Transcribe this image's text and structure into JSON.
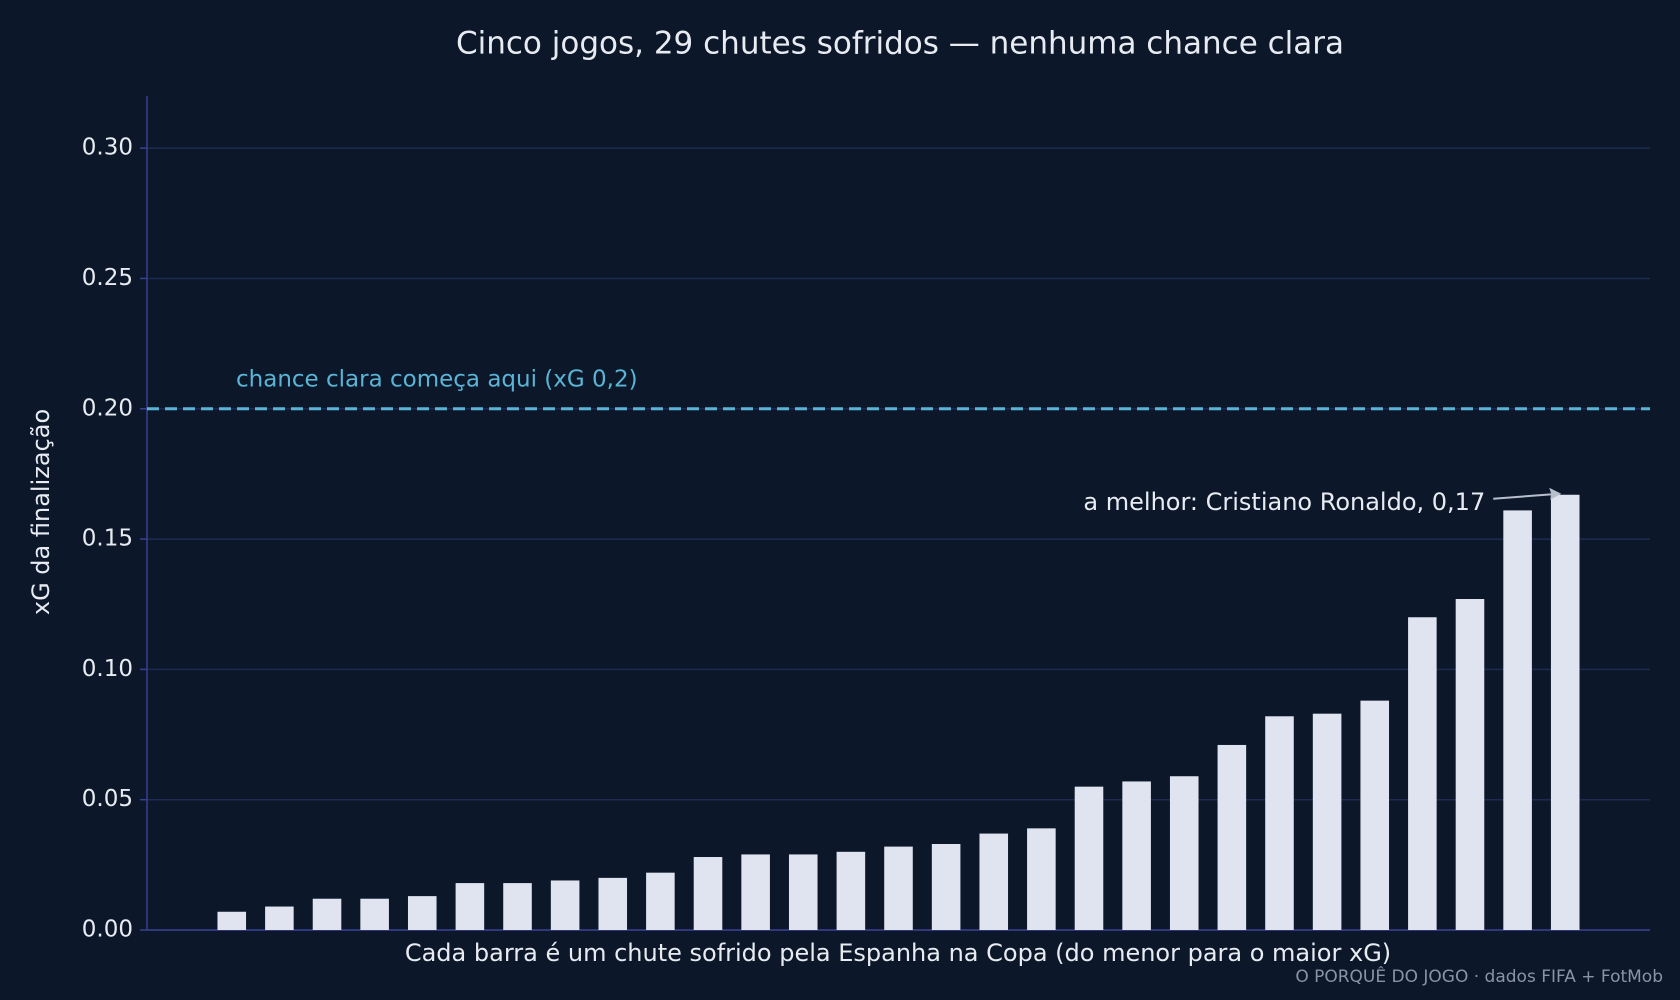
{
  "chart_data": {
    "type": "bar",
    "title": "Cinco jogos, 29 chutes sofridos — nenhuma chance clara",
    "x_label": "Cada barra é um chute sofrido pela Espanha na Copa (do menor para o maior xG)",
    "y_label": "xG da finalização",
    "categories": [
      null,
      null,
      null,
      null,
      null,
      null,
      null,
      null,
      null,
      null,
      null,
      null,
      null,
      null,
      null,
      null,
      null,
      null,
      null,
      null,
      null,
      null,
      null,
      null,
      null,
      null,
      null,
      null,
      null
    ],
    "values": [
      0.007,
      0.009,
      0.012,
      0.012,
      0.013,
      0.018,
      0.018,
      0.019,
      0.02,
      0.022,
      0.028,
      0.029,
      0.029,
      0.03,
      0.032,
      0.033,
      0.037,
      0.039,
      0.055,
      0.057,
      0.059,
      0.071,
      0.082,
      0.083,
      0.088,
      0.12,
      0.127,
      0.161,
      0.167
    ],
    "color": "#dfe4f0",
    "ylim": [
      0,
      0.32
    ],
    "yticks": [
      {
        "value": 0,
        "label": "0.00"
      },
      0.05,
      {
        "value": 0.1,
        "label": "0.10"
      },
      0.15,
      {
        "value": 0.2,
        "label": "0.20"
      },
      0.25,
      {
        "value": 0.3,
        "label": "0.30"
      }
    ],
    "grid": true,
    "reference_line": {
      "value": 0.2,
      "label": "chance clara começa aqui (xG 0,2)",
      "color": "#5ab4d6"
    },
    "annotation": "a melhor: Cristiano Ronaldo, 0,17",
    "source": "O PORQUÊ DO JOGO · dados FIFA + FotMob"
  }
}
